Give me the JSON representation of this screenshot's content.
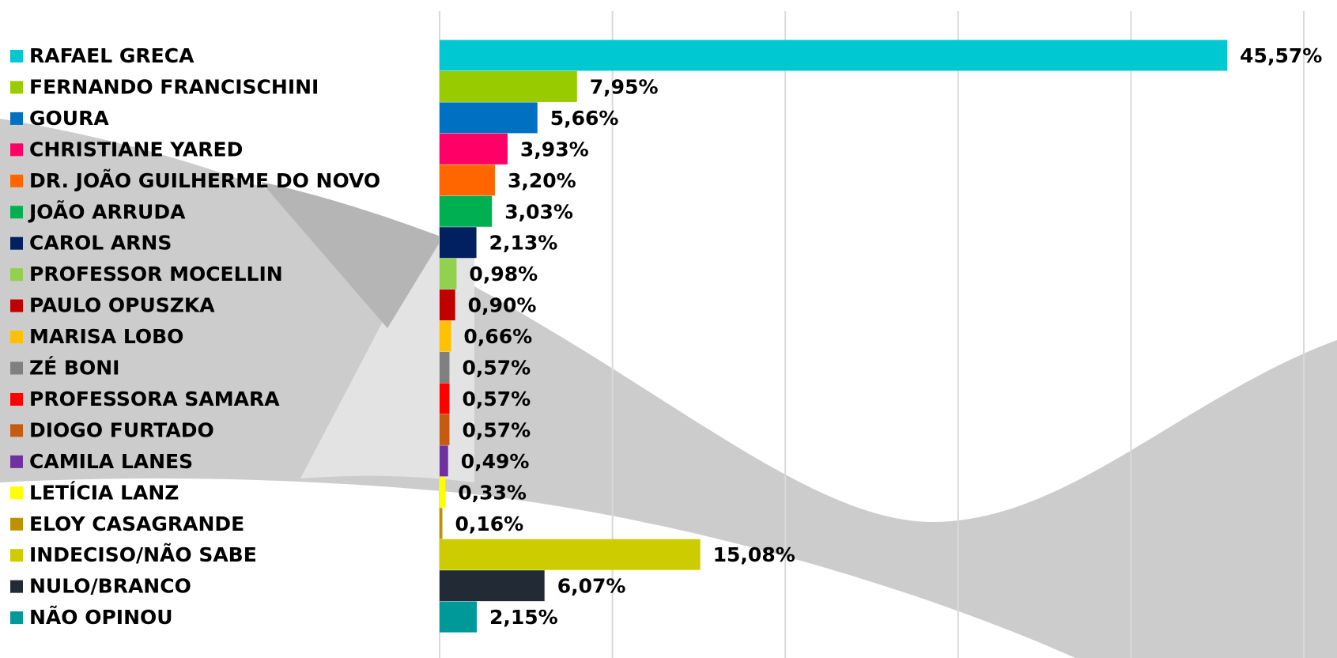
{
  "chart_data": {
    "type": "bar",
    "orientation": "horizontal",
    "categories": [
      "RAFAEL GRECA",
      "FERNANDO FRANCISCHINI",
      "GOURA",
      "CHRISTIANE YARED",
      "DR. JOÃO GUILHERME DO NOVO",
      "JOÃO ARRUDA",
      "CAROL ARNS",
      "PROFESSOR MOCELLIN",
      "PAULO OPUSZKA",
      "MARISA LOBO",
      "ZÉ BONI",
      "PROFESSORA SAMARA",
      "DIOGO FURTADO",
      "CAMILA LANES",
      "LETÍCIA LANZ",
      "ELOY CASAGRANDE",
      "INDECISO/NÃO SABE",
      "NULO/BRANCO",
      "NÃO OPINOU"
    ],
    "values": [
      45.57,
      7.95,
      5.66,
      3.93,
      3.2,
      3.03,
      2.13,
      0.98,
      0.9,
      0.66,
      0.57,
      0.57,
      0.57,
      0.49,
      0.33,
      0.16,
      15.08,
      6.07,
      2.15
    ],
    "value_labels": [
      "45,57%",
      "7,95%",
      "5,66%",
      "3,93%",
      "3,20%",
      "3,03%",
      "2,13%",
      "0,98%",
      "0,90%",
      "0,66%",
      "0,57%",
      "0,57%",
      "0,57%",
      "0,49%",
      "0,33%",
      "0,16%",
      "15,08%",
      "6,07%",
      "2,15%"
    ],
    "colors": [
      "#00c8d0",
      "#99cc00",
      "#0070c0",
      "#ff0066",
      "#ff6600",
      "#00b050",
      "#002060",
      "#92d050",
      "#c00000",
      "#ffc000",
      "#808080",
      "#ff0000",
      "#c55a11",
      "#7030a0",
      "#ffff00",
      "#bf9000",
      "#cccc00",
      "#222a35",
      "#009999"
    ],
    "xlim": [
      0,
      50
    ],
    "xticks": [
      0,
      10,
      20,
      30,
      40,
      50
    ],
    "grid": true
  }
}
